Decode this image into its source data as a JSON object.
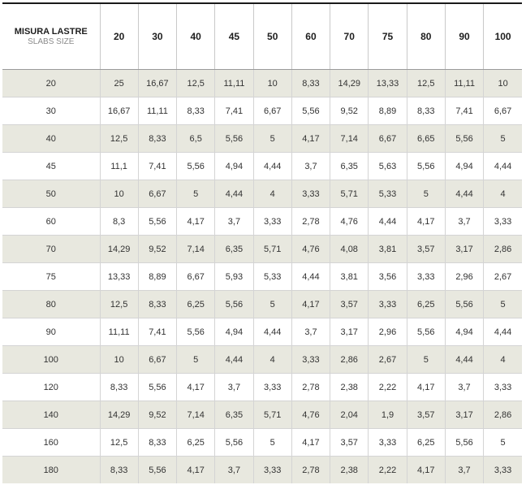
{
  "table": {
    "corner_title": "MISURA LASTRE",
    "corner_subtitle": "SLABS SIZE",
    "columns": [
      "20",
      "30",
      "40",
      "45",
      "50",
      "60",
      "70",
      "75",
      "80",
      "90",
      "100"
    ],
    "rows": [
      {
        "label": "20",
        "cells": [
          "25",
          "16,67",
          "12,5",
          "11,11",
          "10",
          "8,33",
          "14,29",
          "13,33",
          "12,5",
          "11,11",
          "10"
        ]
      },
      {
        "label": "30",
        "cells": [
          "16,67",
          "11,11",
          "8,33",
          "7,41",
          "6,67",
          "5,56",
          "9,52",
          "8,89",
          "8,33",
          "7,41",
          "6,67"
        ]
      },
      {
        "label": "40",
        "cells": [
          "12,5",
          "8,33",
          "6,5",
          "5,56",
          "5",
          "4,17",
          "7,14",
          "6,67",
          "6,65",
          "5,56",
          "5"
        ]
      },
      {
        "label": "45",
        "cells": [
          "11,1",
          "7,41",
          "5,56",
          "4,94",
          "4,44",
          "3,7",
          "6,35",
          "5,63",
          "5,56",
          "4,94",
          "4,44"
        ]
      },
      {
        "label": "50",
        "cells": [
          "10",
          "6,67",
          "5",
          "4,44",
          "4",
          "3,33",
          "5,71",
          "5,33",
          "5",
          "4,44",
          "4"
        ]
      },
      {
        "label": "60",
        "cells": [
          "8,3",
          "5,56",
          "4,17",
          "3,7",
          "3,33",
          "2,78",
          "4,76",
          "4,44",
          "4,17",
          "3,7",
          "3,33"
        ]
      },
      {
        "label": "70",
        "cells": [
          "14,29",
          "9,52",
          "7,14",
          "6,35",
          "5,71",
          "4,76",
          "4,08",
          "3,81",
          "3,57",
          "3,17",
          "2,86"
        ]
      },
      {
        "label": "75",
        "cells": [
          "13,33",
          "8,89",
          "6,67",
          "5,93",
          "5,33",
          "4,44",
          "3,81",
          "3,56",
          "3,33",
          "2,96",
          "2,67"
        ]
      },
      {
        "label": "80",
        "cells": [
          "12,5",
          "8,33",
          "6,25",
          "5,56",
          "5",
          "4,17",
          "3,57",
          "3,33",
          "6,25",
          "5,56",
          "5"
        ]
      },
      {
        "label": "90",
        "cells": [
          "11,11",
          "7,41",
          "5,56",
          "4,94",
          "4,44",
          "3,7",
          "3,17",
          "2,96",
          "5,56",
          "4,94",
          "4,44"
        ]
      },
      {
        "label": "100",
        "cells": [
          "10",
          "6,67",
          "5",
          "4,44",
          "4",
          "3,33",
          "2,86",
          "2,67",
          "5",
          "4,44",
          "4"
        ]
      },
      {
        "label": "120",
        "cells": [
          "8,33",
          "5,56",
          "4,17",
          "3,7",
          "3,33",
          "2,78",
          "2,38",
          "2,22",
          "4,17",
          "3,7",
          "3,33"
        ]
      },
      {
        "label": "140",
        "cells": [
          "14,29",
          "9,52",
          "7,14",
          "6,35",
          "5,71",
          "4,76",
          "2,04",
          "1,9",
          "3,57",
          "3,17",
          "2,86"
        ]
      },
      {
        "label": "160",
        "cells": [
          "12,5",
          "8,33",
          "6,25",
          "5,56",
          "5",
          "4,17",
          "3,57",
          "3,33",
          "6,25",
          "5,56",
          "5"
        ]
      },
      {
        "label": "180",
        "cells": [
          "8,33",
          "5,56",
          "4,17",
          "3,7",
          "3,33",
          "2,78",
          "2,38",
          "2,22",
          "4,17",
          "3,7",
          "3,33"
        ]
      }
    ]
  },
  "colors": {
    "stripe": "#e8e8df",
    "header_rule": "#1a1a1a"
  }
}
